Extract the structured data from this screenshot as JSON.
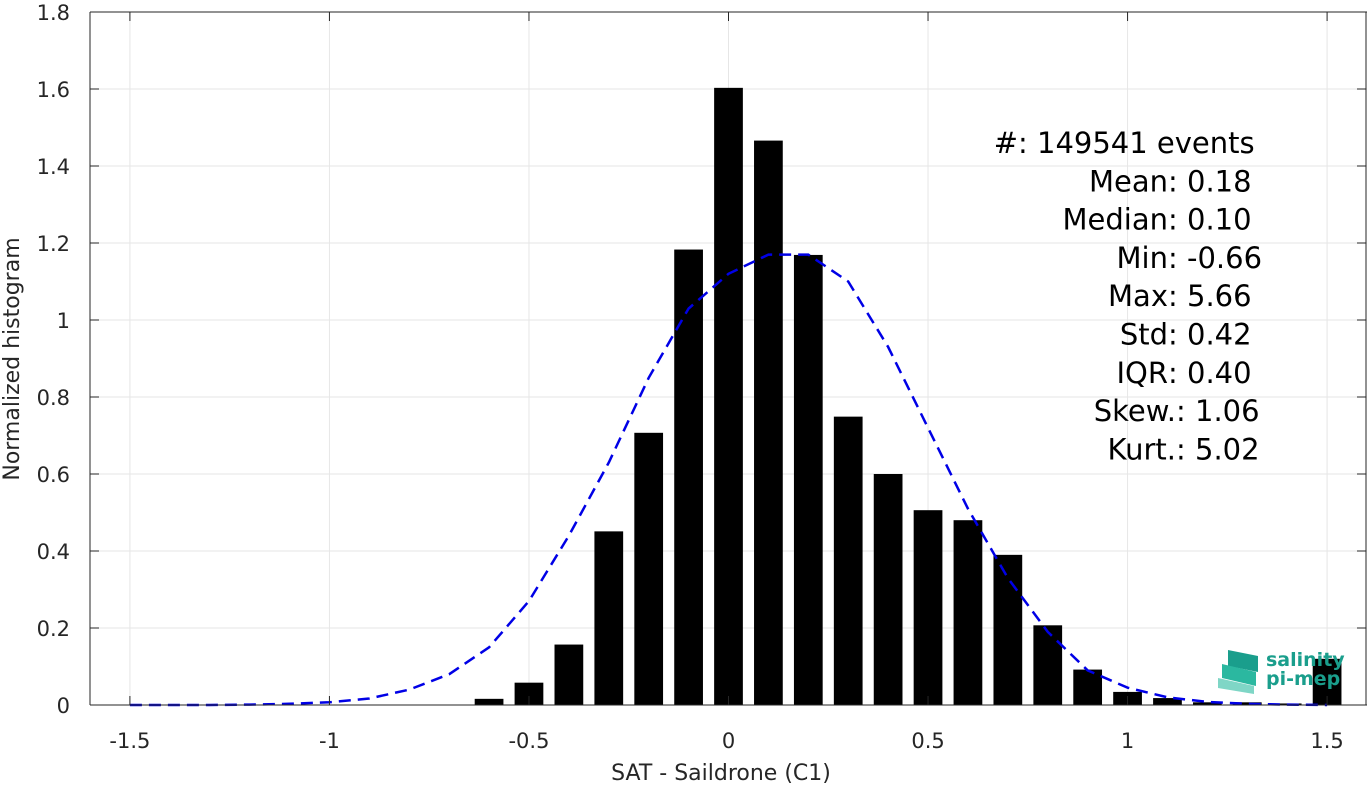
{
  "chart_data": {
    "type": "bar",
    "xlabel": "SAT - Saildrone (C1)",
    "ylabel": "Normalized histogram",
    "xlim": [
      -1.6,
      1.6
    ],
    "ylim": [
      0,
      1.8
    ],
    "grid": true,
    "xticks": [
      -1.5,
      -1,
      -0.5,
      0,
      0.5,
      1,
      1.5
    ],
    "xtick_labels": [
      "-1.5",
      "-1",
      "-0.5",
      "0",
      "0.5",
      "1",
      "1.5"
    ],
    "yticks": [
      0,
      0.2,
      0.4,
      0.6,
      0.8,
      1,
      1.2,
      1.4,
      1.6,
      1.8
    ],
    "ytick_labels": [
      "0",
      "0.2",
      "0.4",
      "0.6",
      "0.8",
      "1",
      "1.2",
      "1.4",
      "1.6",
      "1.8"
    ],
    "bar_color": "#000000",
    "bins": {
      "centers": [
        -0.6,
        -0.5,
        -0.4,
        -0.3,
        -0.2,
        -0.1,
        0.0,
        0.1,
        0.2,
        0.3,
        0.4,
        0.5,
        0.6,
        0.7,
        0.8,
        0.9,
        1.0,
        1.1,
        1.2,
        1.3,
        1.4,
        1.5
      ],
      "values": [
        0.016,
        0.058,
        0.157,
        0.451,
        0.707,
        1.183,
        1.603,
        1.466,
        1.169,
        0.749,
        0.6,
        0.506,
        0.48,
        0.39,
        0.207,
        0.092,
        0.034,
        0.018,
        0.007,
        0.007,
        0.004,
        0.12
      ]
    },
    "fit_curve": {
      "style": "dashed",
      "color": "#0000e6",
      "x": [
        -1.5,
        -1.4,
        -1.3,
        -1.2,
        -1.1,
        -1.0,
        -0.9,
        -0.8,
        -0.7,
        -0.6,
        -0.5,
        -0.4,
        -0.3,
        -0.2,
        -0.1,
        0.0,
        0.1,
        0.2,
        0.3,
        0.4,
        0.5,
        0.6,
        0.7,
        0.8,
        0.9,
        1.0,
        1.1,
        1.2,
        1.3,
        1.4,
        1.5
      ],
      "y": [
        0.0,
        0.0,
        0.0,
        0.001,
        0.003,
        0.007,
        0.017,
        0.04,
        0.08,
        0.15,
        0.27,
        0.44,
        0.63,
        0.85,
        1.03,
        1.12,
        1.17,
        1.17,
        1.1,
        0.93,
        0.72,
        0.51,
        0.33,
        0.19,
        0.09,
        0.045,
        0.02,
        0.008,
        0.003,
        0.001,
        0.0
      ]
    },
    "stats": [
      {
        "label": "#  ",
        "sep": ": ",
        "value": "149541 events"
      },
      {
        "label": "Mean ",
        "sep": ": ",
        "value": "0.18"
      },
      {
        "label": "Median ",
        "sep": ": ",
        "value": "0.10"
      },
      {
        "label": "Min ",
        "sep": ": ",
        "value": "-0.66"
      },
      {
        "label": "Max ",
        "sep": ": ",
        "value": "5.66"
      },
      {
        "label": "Std ",
        "sep": ": ",
        "value": "0.42"
      },
      {
        "label": "IQR ",
        "sep": ": ",
        "value": "0.40"
      },
      {
        "label": "Skew. ",
        "sep": ": ",
        "value": "1.06"
      },
      {
        "label": "Kurt. ",
        "sep": ": ",
        "value": "5.02"
      }
    ]
  },
  "logo": {
    "line1": "salinity",
    "line2": "pi-mep",
    "colors": [
      "#1a9e8c",
      "#2bb8a0",
      "#7fd6c6"
    ]
  }
}
